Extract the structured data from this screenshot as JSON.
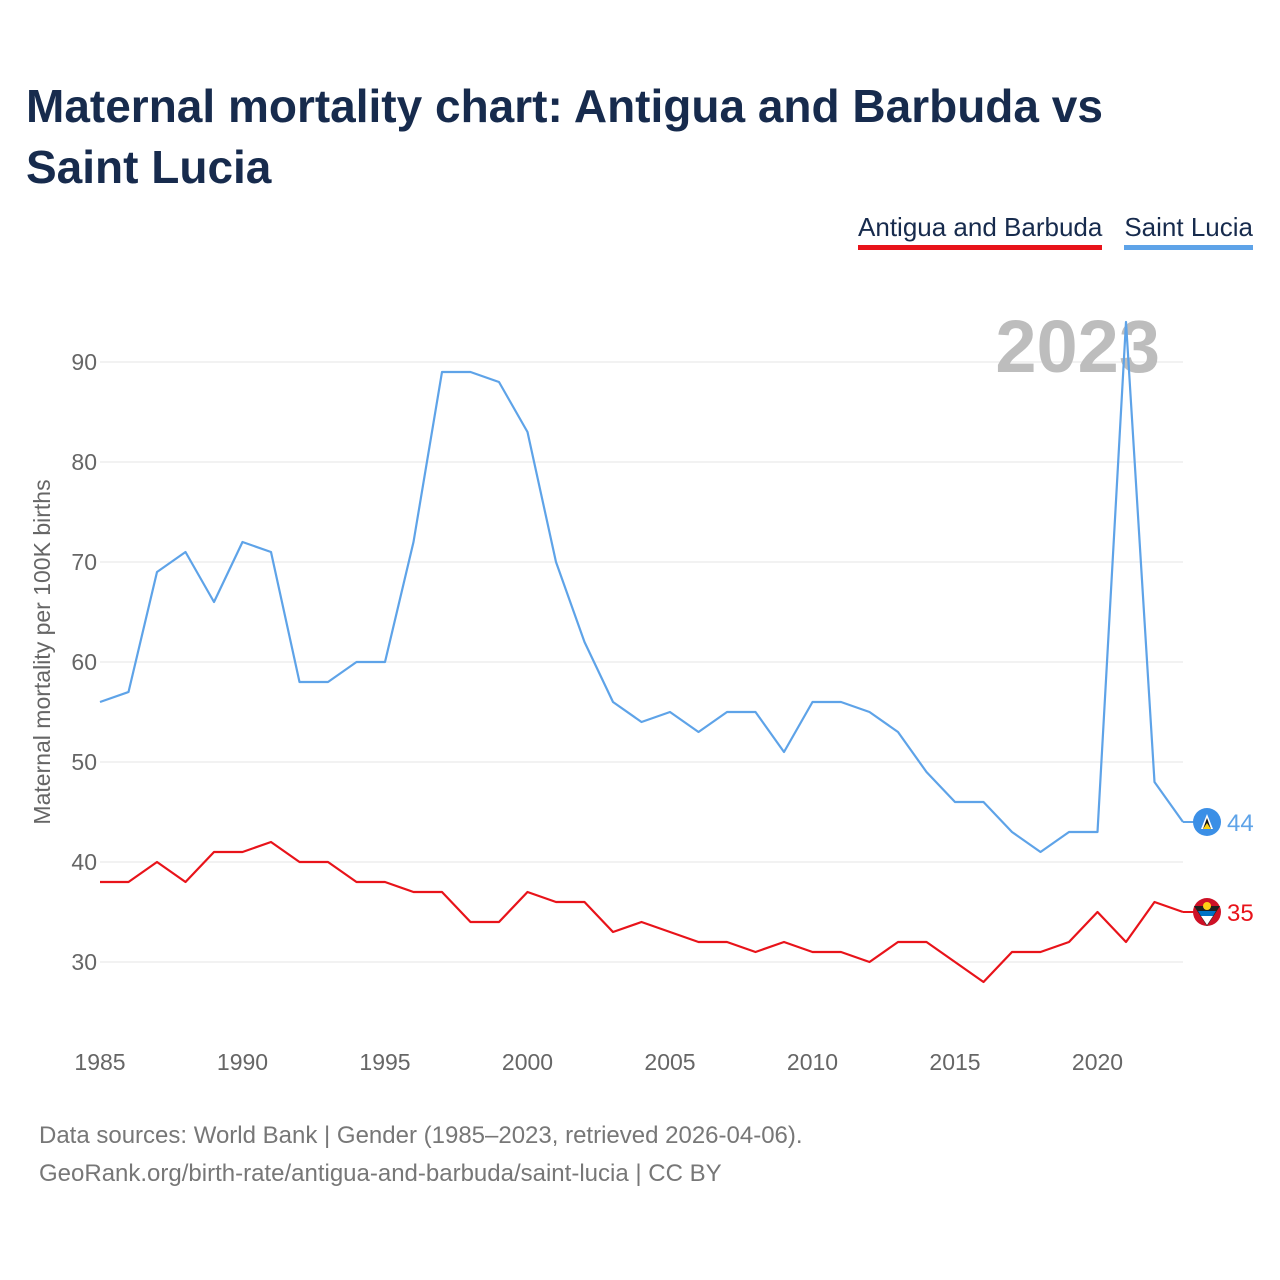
{
  "title": "Maternal mortality chart: Antigua and Barbuda vs Saint Lucia",
  "legend": [
    {
      "name": "Antigua and Barbuda",
      "color": "#e8131a"
    },
    {
      "name": "Saint Lucia",
      "color": "#5ea3e8"
    }
  ],
  "year_label": "2023",
  "source": {
    "line1": "Data sources: World Bank | Gender (1985–2023, retrieved 2026-04-06).",
    "line2": "GeoRank.org/birth-rate/antigua-and-barbuda/saint-lucia | CC BY"
  },
  "chart_data": {
    "type": "line",
    "title": "Maternal mortality chart: Antigua and Barbuda vs Saint Lucia",
    "xlabel": "",
    "ylabel": "Maternal mortality per 100K births",
    "x": [
      1985,
      1986,
      1987,
      1988,
      1989,
      1990,
      1991,
      1992,
      1993,
      1994,
      1995,
      1996,
      1997,
      1998,
      1999,
      2000,
      2001,
      2002,
      2003,
      2004,
      2005,
      2006,
      2007,
      2008,
      2009,
      2010,
      2011,
      2012,
      2013,
      2014,
      2015,
      2016,
      2017,
      2018,
      2019,
      2020,
      2021,
      2022,
      2023
    ],
    "xlim": [
      1985,
      2023
    ],
    "xticks": [
      1985,
      1990,
      1995,
      2000,
      2005,
      2010,
      2015,
      2020
    ],
    "ylim": [
      23,
      96
    ],
    "yticks": [
      30,
      40,
      50,
      60,
      70,
      80,
      90
    ],
    "grid": true,
    "series": [
      {
        "name": "Saint Lucia",
        "color": "#5ea3e8",
        "values": [
          56,
          57,
          69,
          71,
          66,
          72,
          71,
          58,
          58,
          60,
          60,
          72,
          89,
          89,
          88,
          83,
          70,
          62,
          56,
          54,
          55,
          53,
          55,
          55,
          51,
          56,
          56,
          55,
          53,
          49,
          46,
          46,
          43,
          41,
          43,
          43,
          94,
          48,
          44
        ],
        "end_label": "44"
      },
      {
        "name": "Antigua and Barbuda",
        "color": "#e8131a",
        "values": [
          38,
          38,
          40,
          38,
          41,
          41,
          42,
          40,
          40,
          38,
          38,
          37,
          37,
          34,
          34,
          37,
          36,
          36,
          33,
          34,
          33,
          32,
          32,
          31,
          32,
          31,
          31,
          30,
          32,
          32,
          30,
          28,
          31,
          31,
          32,
          35,
          32,
          36,
          35
        ],
        "end_label": "35"
      }
    ]
  }
}
